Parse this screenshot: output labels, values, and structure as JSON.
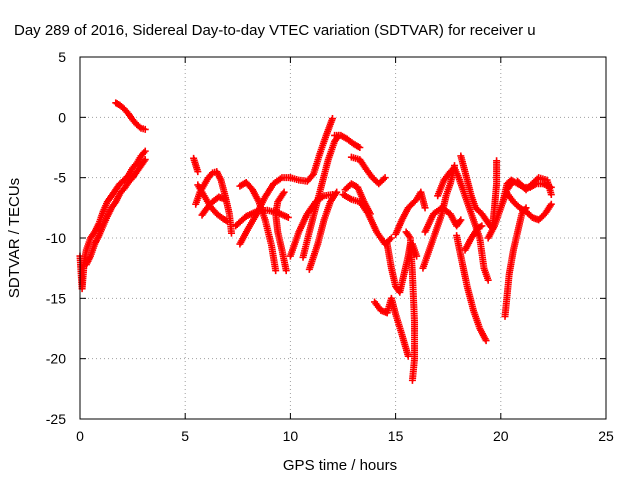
{
  "chart_data": {
    "type": "scatter",
    "title": "Day 289 of 2016, Sidereal Day-to-day VTEC variation (SDTVAR) for receiver u",
    "xlabel": "GPS time / hours",
    "ylabel": "SDTVAR / TECUs",
    "xlim": [
      0,
      25
    ],
    "ylim": [
      -25,
      5
    ],
    "x_ticks": [
      0,
      5,
      10,
      15,
      20,
      25
    ],
    "y_ticks": [
      -25,
      -20,
      -15,
      -10,
      -5,
      0,
      5
    ],
    "grid": true,
    "marker": "+",
    "colors": {
      "points": "#ff0000"
    },
    "series": [
      {
        "segments": [
          [
            [
              0.0,
              -11.5
            ],
            [
              0.1,
              -14.2
            ],
            [
              0.2,
              -12.0
            ],
            [
              0.3,
              -11.0
            ],
            [
              0.5,
              -10.0
            ],
            [
              0.7,
              -9.5
            ],
            [
              0.9,
              -8.8
            ],
            [
              1.1,
              -7.8
            ],
            [
              1.3,
              -7.0
            ],
            [
              1.5,
              -6.5
            ],
            [
              1.7,
              -6.0
            ],
            [
              1.9,
              -5.5
            ],
            [
              2.1,
              -5.2
            ],
            [
              2.3,
              -4.8
            ],
            [
              2.5,
              -4.2
            ],
            [
              2.7,
              -3.8
            ],
            [
              2.9,
              -3.2
            ],
            [
              3.1,
              -2.8
            ]
          ],
          [
            [
              0.3,
              -12.2
            ],
            [
              0.5,
              -11.5
            ],
            [
              0.7,
              -10.5
            ],
            [
              0.9,
              -9.8
            ],
            [
              1.1,
              -9.0
            ],
            [
              1.3,
              -8.2
            ],
            [
              1.5,
              -7.5
            ],
            [
              1.7,
              -7.0
            ],
            [
              1.9,
              -6.3
            ],
            [
              2.1,
              -5.9
            ],
            [
              2.3,
              -5.4
            ],
            [
              2.5,
              -5.0
            ],
            [
              2.7,
              -4.5
            ],
            [
              2.9,
              -4.0
            ],
            [
              3.1,
              -3.5
            ]
          ],
          [
            [
              1.7,
              1.2
            ],
            [
              1.9,
              1.0
            ],
            [
              2.1,
              0.7
            ],
            [
              2.3,
              0.3
            ],
            [
              2.5,
              -0.2
            ],
            [
              2.7,
              -0.6
            ],
            [
              2.9,
              -0.9
            ],
            [
              3.1,
              -1.0
            ]
          ],
          [
            [
              5.4,
              -3.4
            ],
            [
              5.6,
              -4.5
            ]
          ],
          [
            [
              5.5,
              -7.2
            ],
            [
              5.7,
              -6.2
            ],
            [
              5.9,
              -5.6
            ],
            [
              6.1,
              -5.0
            ],
            [
              6.3,
              -4.6
            ],
            [
              6.5,
              -4.5
            ],
            [
              6.7,
              -5.2
            ],
            [
              6.9,
              -6.5
            ],
            [
              7.1,
              -8.0
            ],
            [
              7.2,
              -9.6
            ]
          ],
          [
            [
              5.6,
              -5.6
            ],
            [
              5.9,
              -6.5
            ],
            [
              6.2,
              -7.4
            ],
            [
              6.5,
              -8.0
            ],
            [
              6.8,
              -8.4
            ],
            [
              7.0,
              -8.6
            ]
          ],
          [
            [
              5.8,
              -8.1
            ],
            [
              6.0,
              -7.6
            ],
            [
              6.3,
              -7.0
            ],
            [
              6.6,
              -6.6
            ],
            [
              6.9,
              -6.8
            ]
          ],
          [
            [
              7.6,
              -5.7
            ],
            [
              7.9,
              -5.4
            ],
            [
              8.2,
              -6.0
            ],
            [
              8.5,
              -7.0
            ],
            [
              8.8,
              -8.5
            ],
            [
              9.1,
              -10.6
            ],
            [
              9.3,
              -12.7
            ]
          ],
          [
            [
              7.6,
              -10.5
            ],
            [
              8.0,
              -9.2
            ],
            [
              8.4,
              -8.0
            ],
            [
              8.8,
              -6.6
            ],
            [
              9.2,
              -5.5
            ],
            [
              9.6,
              -5.0
            ],
            [
              10.0,
              -5.0
            ]
          ],
          [
            [
              7.4,
              -9.0
            ],
            [
              7.9,
              -8.2
            ],
            [
              8.4,
              -7.8
            ],
            [
              8.9,
              -7.7
            ],
            [
              9.4,
              -7.9
            ],
            [
              9.9,
              -8.3
            ]
          ],
          [
            [
              9.8,
              -12.7
            ],
            [
              9.6,
              -11.0
            ],
            [
              9.4,
              -9.5
            ],
            [
              9.3,
              -8.0
            ],
            [
              9.4,
              -7.0
            ],
            [
              9.7,
              -6.2
            ]
          ],
          [
            [
              10.0,
              -11.5
            ],
            [
              10.4,
              -9.5
            ],
            [
              10.8,
              -8.0
            ],
            [
              11.2,
              -7.0
            ],
            [
              11.6,
              -6.5
            ],
            [
              12.0,
              -6.4
            ]
          ],
          [
            [
              10.0,
              -5.0
            ],
            [
              10.4,
              -5.2
            ],
            [
              10.8,
              -5.3
            ],
            [
              11.1,
              -4.7
            ],
            [
              11.4,
              -3.0
            ],
            [
              11.7,
              -1.5
            ],
            [
              12.0,
              -0.1
            ]
          ],
          [
            [
              10.6,
              -11.6
            ],
            [
              10.9,
              -9.5
            ],
            [
              11.2,
              -7.5
            ],
            [
              11.5,
              -5.5
            ],
            [
              11.8,
              -3.5
            ],
            [
              12.1,
              -2.0
            ],
            [
              12.3,
              -1.5
            ]
          ],
          [
            [
              10.9,
              -12.6
            ],
            [
              11.3,
              -10.5
            ],
            [
              11.6,
              -8.5
            ],
            [
              11.9,
              -7.0
            ],
            [
              12.2,
              -6.2
            ]
          ],
          [
            [
              12.1,
              -1.5
            ],
            [
              12.4,
              -1.5
            ],
            [
              12.7,
              -1.8
            ],
            [
              13.0,
              -2.2
            ],
            [
              13.3,
              -2.5
            ]
          ],
          [
            [
              12.9,
              -3.3
            ],
            [
              13.3,
              -3.5
            ],
            [
              13.6,
              -4.3
            ],
            [
              13.9,
              -5.0
            ],
            [
              14.2,
              -5.5
            ],
            [
              14.5,
              -5.0
            ]
          ],
          [
            [
              12.5,
              -6.4
            ],
            [
              12.9,
              -6.8
            ],
            [
              13.3,
              -7.0
            ],
            [
              13.7,
              -8.0
            ],
            [
              14.1,
              -9.5
            ],
            [
              14.5,
              -10.5
            ],
            [
              14.8,
              -10.0
            ]
          ],
          [
            [
              12.6,
              -6.0
            ],
            [
              12.9,
              -5.5
            ],
            [
              13.2,
              -5.8
            ],
            [
              13.5,
              -7.0
            ],
            [
              13.8,
              -8.0
            ]
          ],
          [
            [
              14.0,
              -15.3
            ],
            [
              14.3,
              -16.0
            ],
            [
              14.6,
              -16.2
            ],
            [
              14.8,
              -15.0
            ],
            [
              15.0,
              -16.3
            ],
            [
              15.3,
              -18.0
            ],
            [
              15.6,
              -19.8
            ]
          ],
          [
            [
              14.6,
              -10.5
            ],
            [
              14.8,
              -12.5
            ],
            [
              15.0,
              -14.0
            ],
            [
              15.2,
              -14.5
            ],
            [
              15.4,
              -13.0
            ],
            [
              15.6,
              -11.5
            ],
            [
              15.7,
              -10.5
            ]
          ],
          [
            [
              15.0,
              -9.7
            ],
            [
              15.3,
              -8.5
            ],
            [
              15.6,
              -7.5
            ],
            [
              16.0,
              -6.8
            ],
            [
              16.2,
              -6.2
            ],
            [
              16.4,
              -7.5
            ]
          ],
          [
            [
              15.5,
              -9.5
            ],
            [
              15.7,
              -10.0
            ],
            [
              15.8,
              -13.0
            ],
            [
              15.9,
              -17.0
            ],
            [
              15.9,
              -20.0
            ],
            [
              15.8,
              -21.8
            ]
          ],
          [
            [
              15.8,
              -10.5
            ],
            [
              16.0,
              -11.5
            ]
          ],
          [
            [
              16.3,
              -12.5
            ],
            [
              16.6,
              -11.0
            ],
            [
              16.9,
              -9.5
            ],
            [
              17.2,
              -8.0
            ],
            [
              17.4,
              -6.5
            ],
            [
              17.6,
              -5.5
            ],
            [
              17.8,
              -4.0
            ]
          ],
          [
            [
              16.4,
              -9.5
            ],
            [
              16.8,
              -8.0
            ],
            [
              17.2,
              -7.5
            ],
            [
              17.6,
              -8.0
            ],
            [
              17.9,
              -9.0
            ],
            [
              18.1,
              -8.5
            ]
          ],
          [
            [
              17.0,
              -6.5
            ],
            [
              17.3,
              -5.2
            ],
            [
              17.6,
              -4.5
            ],
            [
              17.8,
              -4.2
            ],
            [
              18.0,
              -5.0
            ],
            [
              18.3,
              -6.5
            ],
            [
              18.6,
              -8.0
            ],
            [
              19.0,
              -10.0
            ],
            [
              19.2,
              -12.5
            ],
            [
              19.4,
              -13.5
            ]
          ],
          [
            [
              17.9,
              -9.8
            ],
            [
              18.1,
              -11.5
            ],
            [
              18.4,
              -14.0
            ],
            [
              18.7,
              -16.0
            ],
            [
              19.0,
              -17.5
            ],
            [
              19.3,
              -18.5
            ]
          ],
          [
            [
              18.1,
              -3.2
            ],
            [
              18.3,
              -4.5
            ],
            [
              18.6,
              -6.5
            ],
            [
              18.8,
              -7.5
            ],
            [
              19.1,
              -8.0
            ],
            [
              19.3,
              -8.5
            ],
            [
              19.5,
              -9.0
            ],
            [
              19.6,
              -9.2
            ],
            [
              19.7,
              -7.5
            ],
            [
              19.8,
              -5.5
            ],
            [
              19.8,
              -3.6
            ]
          ],
          [
            [
              18.3,
              -11.0
            ],
            [
              18.6,
              -10.0
            ],
            [
              18.9,
              -9.2
            ],
            [
              19.1,
              -9.0
            ]
          ],
          [
            [
              19.4,
              -10.0
            ],
            [
              19.7,
              -9.0
            ],
            [
              20.0,
              -7.5
            ],
            [
              20.3,
              -6.0
            ],
            [
              20.5,
              -5.5
            ]
          ],
          [
            [
              20.2,
              -16.5
            ],
            [
              20.4,
              -13.0
            ],
            [
              20.6,
              -11.0
            ],
            [
              20.8,
              -9.5
            ],
            [
              21.0,
              -8.0
            ],
            [
              21.2,
              -7.5
            ]
          ],
          [
            [
              20.1,
              -7.0
            ],
            [
              20.3,
              -5.5
            ],
            [
              20.5,
              -5.2
            ],
            [
              20.8,
              -5.5
            ],
            [
              21.1,
              -5.8
            ],
            [
              21.4,
              -5.8
            ],
            [
              21.7,
              -5.5
            ],
            [
              22.0,
              -5.5
            ],
            [
              22.4,
              -5.8
            ]
          ],
          [
            [
              20.3,
              -6.3
            ],
            [
              20.6,
              -7.0
            ],
            [
              20.9,
              -7.5
            ],
            [
              21.2,
              -7.8
            ],
            [
              21.5,
              -8.3
            ],
            [
              21.8,
              -8.5
            ],
            [
              22.1,
              -8.0
            ],
            [
              22.4,
              -7.2
            ]
          ],
          [
            [
              20.8,
              -5.3
            ],
            [
              21.2,
              -6.0
            ],
            [
              21.5,
              -5.5
            ],
            [
              21.8,
              -5.0
            ],
            [
              22.2,
              -5.2
            ],
            [
              22.4,
              -6.4
            ]
          ]
        ]
      }
    ]
  }
}
